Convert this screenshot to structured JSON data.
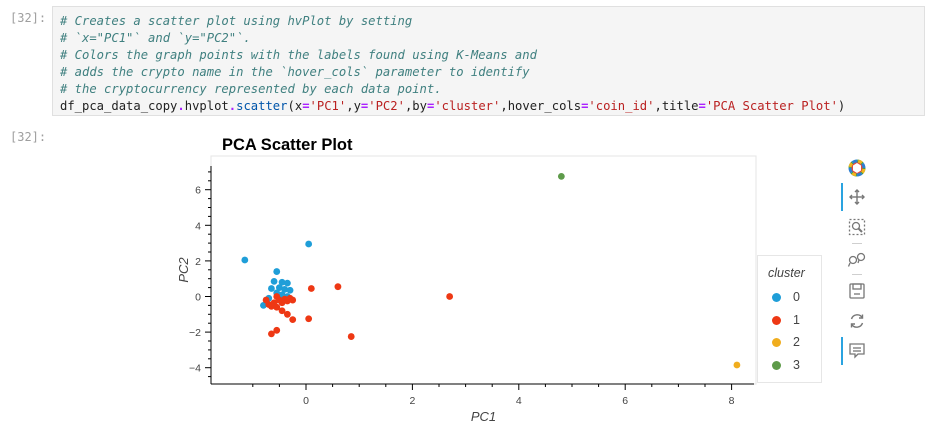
{
  "notebook": {
    "input_prompt": "[32]:",
    "output_prompt": "[32]:",
    "code_comments": [
      "# Creates a scatter plot using hvPlot by setting",
      "# `x=\"PC1\"` and `y=\"PC2\"`.",
      "# Colors the graph points with the labels found using K-Means and",
      "# adds the crypto name in the `hover_cols` parameter to identify",
      "# the cryptocurrency represented by each data point."
    ],
    "code_parts": {
      "obj": "df_pca_data_copy",
      "dot1": ".",
      "attr": "hvplot",
      "dot2": ".",
      "method": "scatter",
      "lp": "(",
      "k1": "x",
      "eq1": "=",
      "v1": "'PC1'",
      "c1": ",",
      "k2": "y",
      "eq2": "=",
      "v2": "'PC2'",
      "c2": ",",
      "k3": "by",
      "eq3": "=",
      "v3": "'cluster'",
      "c3": ",",
      "k4": "hover_cols",
      "eq4": "=",
      "v4": "'coin_id'",
      "c4": ",",
      "k5": "title",
      "eq5": "=",
      "v5": "'PCA Scatter Plot'",
      "rp": ")"
    }
  },
  "chart_data": {
    "type": "scatter",
    "title": "PCA Scatter Plot",
    "xlabel": "PC1",
    "ylabel": "PC2",
    "xlim": [
      -1.3,
      8.5
    ],
    "ylim": [
      -4.7,
      7.5
    ],
    "x_ticks": [
      0,
      2,
      4,
      6,
      8
    ],
    "y_ticks": [
      -4,
      -2,
      0,
      2,
      4,
      6
    ],
    "x_tick_labels": [
      "0",
      "2",
      "4",
      "6",
      "8"
    ],
    "y_tick_labels": [
      "−4",
      "−2",
      "0",
      "2",
      "4",
      "6"
    ],
    "grid": false,
    "legend_title": "cluster",
    "legend_position": "right",
    "series": [
      {
        "name": "0",
        "color": "#1f9ed8",
        "points": [
          [
            -1.15,
            2.05
          ],
          [
            0.05,
            2.95
          ],
          [
            -0.55,
            1.4
          ],
          [
            -0.6,
            0.85
          ],
          [
            -0.45,
            0.8
          ],
          [
            -0.35,
            0.75
          ],
          [
            -0.65,
            0.45
          ],
          [
            -0.5,
            0.5
          ],
          [
            -0.4,
            0.4
          ],
          [
            -0.3,
            0.35
          ],
          [
            -0.55,
            0.2
          ],
          [
            -0.45,
            0.1
          ],
          [
            -0.35,
            0.0
          ],
          [
            -0.7,
            -0.1
          ],
          [
            -0.8,
            -0.5
          ]
        ]
      },
      {
        "name": "1",
        "color": "#ee3814",
        "points": [
          [
            2.7,
            0.0
          ],
          [
            0.6,
            0.55
          ],
          [
            0.1,
            0.45
          ],
          [
            -0.75,
            -0.2
          ],
          [
            -0.7,
            -0.45
          ],
          [
            -0.55,
            0.0
          ],
          [
            -0.5,
            -0.2
          ],
          [
            -0.45,
            -0.35
          ],
          [
            -0.4,
            -0.15
          ],
          [
            -0.35,
            -0.25
          ],
          [
            -0.3,
            -0.1
          ],
          [
            -0.25,
            -0.2
          ],
          [
            -0.6,
            -0.35
          ],
          [
            -0.65,
            -0.55
          ],
          [
            -0.55,
            -0.6
          ],
          [
            -0.45,
            -0.8
          ],
          [
            -0.35,
            -1.0
          ],
          [
            -0.25,
            -1.3
          ],
          [
            0.05,
            -1.25
          ],
          [
            -0.55,
            -1.9
          ],
          [
            -0.65,
            -2.1
          ],
          [
            0.85,
            -2.25
          ]
        ]
      },
      {
        "name": "2",
        "color": "#f0ad1e",
        "points": [
          [
            8.1,
            -3.85
          ]
        ]
      },
      {
        "name": "3",
        "color": "#5e9b4a",
        "points": [
          [
            4.8,
            6.75
          ]
        ]
      }
    ]
  },
  "toolbar": {
    "tools": [
      {
        "icon": "bokeh-logo-icon",
        "active": false
      },
      {
        "icon": "pan-icon",
        "active": true
      },
      {
        "icon": "box-zoom-icon",
        "active": false
      },
      {
        "icon": "wheel-zoom-icon",
        "active": false
      },
      {
        "icon": "save-icon",
        "active": false
      },
      {
        "icon": "reset-icon",
        "active": false
      },
      {
        "icon": "hover-icon",
        "active": true
      }
    ]
  }
}
